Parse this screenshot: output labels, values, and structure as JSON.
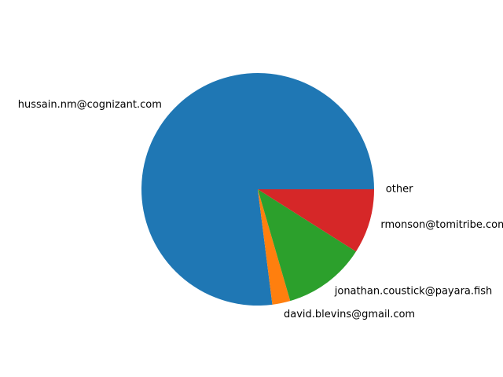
{
  "chart_data": {
    "type": "pie",
    "title": "",
    "slices": [
      {
        "label": "other",
        "value": 0.0,
        "color": "#1f77b4"
      },
      {
        "label": "hussain.nm@cognizant.com",
        "value": 77.0,
        "color": "#1f77b4"
      },
      {
        "label": "david.blevins@gmail.com",
        "value": 2.5,
        "color": "#ff7f0e"
      },
      {
        "label": "jonathan.coustick@payara.fish",
        "value": 11.5,
        "color": "#2ca02c"
      },
      {
        "label": "rmonson@tomitribe.com",
        "value": 9.0,
        "color": "#d62728"
      }
    ]
  }
}
